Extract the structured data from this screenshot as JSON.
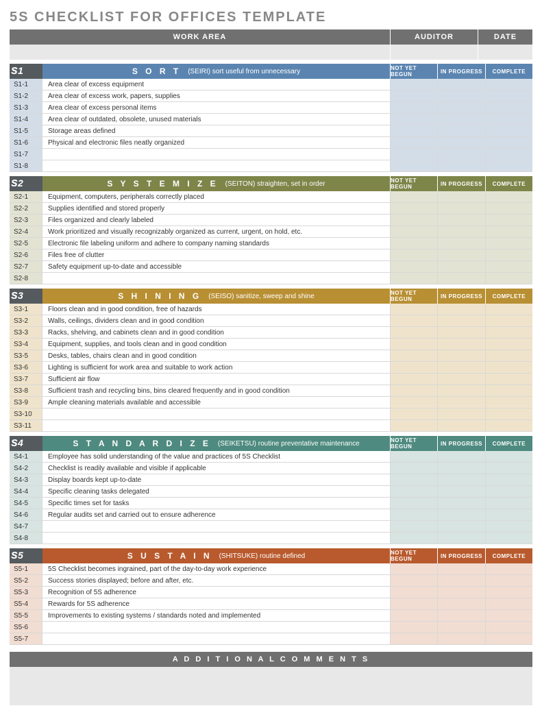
{
  "title": "5S CHECKLIST FOR OFFICES TEMPLATE",
  "header": {
    "work_area": "WORK AREA",
    "auditor": "AUDITOR",
    "date": "DATE"
  },
  "status_labels": {
    "nyb": "NOT YET BEGUN",
    "ip": "IN PROGRESS",
    "cp": "COMPLETE"
  },
  "colors": {
    "header_bar": "#707070",
    "input_bg": "#e8e8e8"
  },
  "sections": [
    {
      "badge": "s1",
      "name": "S O R T",
      "sub": "(SEIRI)  sort useful from unnecessary",
      "head_bg": "#5b85b0",
      "id_bg": "#d3dde8",
      "cell_bg": "#d3dde8",
      "items": [
        {
          "id": "S1-1",
          "desc": "Area clear of excess equipment"
        },
        {
          "id": "S1-2",
          "desc": "Area clear of excess work, papers, supplies"
        },
        {
          "id": "S1-3",
          "desc": "Area clear of excess personal items"
        },
        {
          "id": "S1-4",
          "desc": "Area clear of outdated, obsolete, unused materials"
        },
        {
          "id": "S1-5",
          "desc": "Storage areas defined"
        },
        {
          "id": "S1-6",
          "desc": "Physical and electronic files neatly organized"
        },
        {
          "id": "S1-7",
          "desc": ""
        },
        {
          "id": "S1-8",
          "desc": ""
        }
      ]
    },
    {
      "badge": "s2",
      "name": "S Y S T E M I Z E",
      "sub": "(SEITON)  straighten, set in order",
      "head_bg": "#7e8549",
      "id_bg": "#e2e3d3",
      "cell_bg": "#e2e3d3",
      "items": [
        {
          "id": "S2-1",
          "desc": "Equipment, computers, peripherals correctly placed"
        },
        {
          "id": "S2-2",
          "desc": "Supplies identified and stored properly"
        },
        {
          "id": "S2-3",
          "desc": "Files organized and clearly labeled"
        },
        {
          "id": "S2-4",
          "desc": "Work prioritized and visually recognizably organized as current, urgent, on hold, etc."
        },
        {
          "id": "S2-5",
          "desc": "Electronic file labeling uniform and adhere to company naming standards"
        },
        {
          "id": "S2-6",
          "desc": "Files free of clutter"
        },
        {
          "id": "S2-7",
          "desc": "Safety equipment up-to-date and accessible"
        },
        {
          "id": "S2-8",
          "desc": ""
        }
      ]
    },
    {
      "badge": "s3",
      "name": "S H I N I N G",
      "sub": "(SEISO)  sanitize, sweep and shine",
      "head_bg": "#b88f33",
      "id_bg": "#efe4cb",
      "cell_bg": "#efe4cb",
      "items": [
        {
          "id": "S3-1",
          "desc": "Floors clean and in good condition, free of hazards"
        },
        {
          "id": "S3-2",
          "desc": "Walls, ceilings, dividers clean and in good condition"
        },
        {
          "id": "S3-3",
          "desc": "Racks, shelving, and cabinets clean and in good condition"
        },
        {
          "id": "S3-4",
          "desc": "Equipment, supplies, and tools clean and in good condition"
        },
        {
          "id": "S3-5",
          "desc": "Desks, tables, chairs clean and in good condition"
        },
        {
          "id": "S3-6",
          "desc": "Lighting is sufficient for work area and suitable to work action"
        },
        {
          "id": "S3-7",
          "desc": "Sufficient air flow"
        },
        {
          "id": "S3-8",
          "desc": "Sufficient trash and recycling bins, bins cleared frequently and in good condition"
        },
        {
          "id": "S3-9",
          "desc": "Ample cleaning materials available and accessible"
        },
        {
          "id": "S3-10",
          "desc": ""
        },
        {
          "id": "S3-11",
          "desc": ""
        }
      ]
    },
    {
      "badge": "s4",
      "name": "S T A N D A R D I Z E",
      "sub": "(SEIKETSU)  routine preventative maintenance",
      "head_bg": "#4e8a7f",
      "id_bg": "#d7e4e1",
      "cell_bg": "#d7e4e1",
      "items": [
        {
          "id": "S4-1",
          "desc": "Employee has solid understanding of the value and practices of 5S Checklist"
        },
        {
          "id": "S4-2",
          "desc": "Checklist is readily available and visible if applicable"
        },
        {
          "id": "S4-3",
          "desc": "Display boards kept up-to-date"
        },
        {
          "id": "S4-4",
          "desc": "Specific cleaning tasks delegated"
        },
        {
          "id": "S4-5",
          "desc": "Specific times set for tasks"
        },
        {
          "id": "S4-6",
          "desc": "Regular audits set and carried out to ensure adherence"
        },
        {
          "id": "S4-7",
          "desc": ""
        },
        {
          "id": "S4-8",
          "desc": ""
        }
      ]
    },
    {
      "badge": "s5",
      "name": "S U S T A I N",
      "sub": "(SHITSUKE)  routine defined",
      "head_bg": "#b85a2e",
      "id_bg": "#f2ddd2",
      "cell_bg": "#f2ddd2",
      "items": [
        {
          "id": "S5-1",
          "desc": "5S Checklist becomes ingrained, part of the day-to-day work experience"
        },
        {
          "id": "S5-2",
          "desc": "Success stories displayed; before and after, etc."
        },
        {
          "id": "S5-3",
          "desc": "Recognition of 5S adherence"
        },
        {
          "id": "S5-4",
          "desc": "Rewards for 5S adherence"
        },
        {
          "id": "S5-5",
          "desc": "Improvements to existing systems  / standards noted and implemented"
        },
        {
          "id": "S5-6",
          "desc": ""
        },
        {
          "id": "S5-7",
          "desc": ""
        }
      ]
    }
  ],
  "additional": {
    "title": "A D D I T I O N A L   C O M M E N T S"
  }
}
